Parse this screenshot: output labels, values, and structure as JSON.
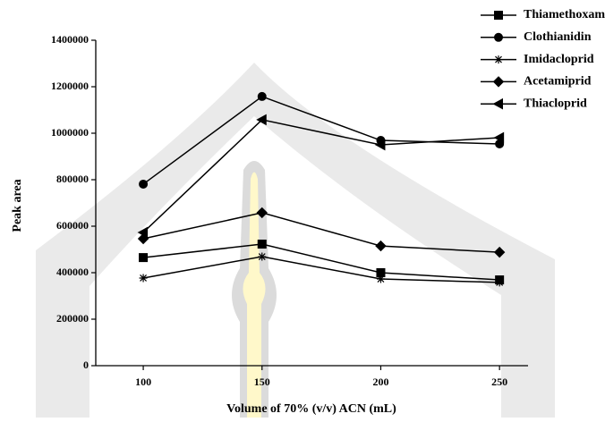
{
  "chart_data": {
    "type": "line",
    "x_label": "Volume of 70% (v/v) ACN (mL)",
    "y_label": "Peak area",
    "x": [
      100,
      150,
      200,
      250
    ],
    "xlim": [
      80,
      262
    ],
    "xticks": [
      100,
      150,
      200,
      250
    ],
    "ylim": [
      0,
      1400000
    ],
    "yticks": [
      0,
      200000,
      400000,
      600000,
      800000,
      1000000,
      1200000,
      1400000
    ],
    "legend": "top-right",
    "series": [
      {
        "name": "Thiamethoxam",
        "color": "#000000",
        "marker": "square",
        "values": [
          465000,
          523000,
          400000,
          369000
        ]
      },
      {
        "name": "Clothianidin",
        "color": "#000000",
        "marker": "circle",
        "values": [
          781000,
          1158000,
          969000,
          954000
        ]
      },
      {
        "name": "Imidacloprid",
        "color": "#000000",
        "marker": "star",
        "values": [
          377000,
          469000,
          373000,
          358000
        ]
      },
      {
        "name": "Acetamiprid",
        "color": "#000000",
        "marker": "diamond",
        "values": [
          546000,
          658000,
          515000,
          488000
        ]
      },
      {
        "name": "Thiacloprid",
        "color": "#000000",
        "marker": "triangle-left",
        "values": [
          573000,
          1058000,
          950000,
          981000
        ]
      }
    ]
  }
}
